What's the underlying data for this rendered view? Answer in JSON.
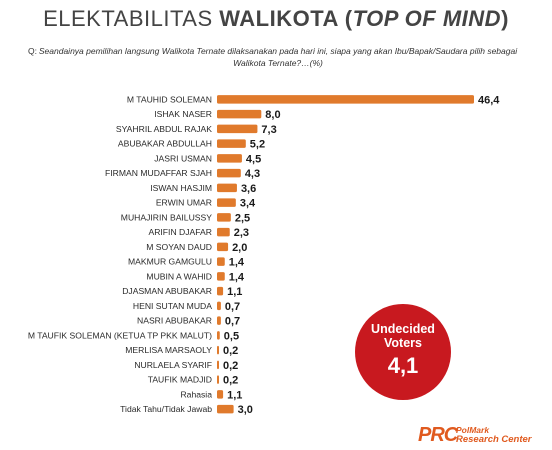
{
  "header": {
    "title_prefix": "ELEKTABILITAS ",
    "title_bold": "WALIKOTA",
    "title_open": " (",
    "title_italic": "TOP OF MIND",
    "title_close": ")",
    "question_label": "Q:",
    "question_text": "Seandainya pemilihan langsung Walikota Ternate dilaksanakan pada hari ini, siapa yang akan Ibu/Bapak/Saudara  pilih sebagai Walikota Ternate?…(%)"
  },
  "undecided": {
    "label_line1": "Undecided",
    "label_line2": "Voters",
    "value": "4,1"
  },
  "logo": {
    "mark": "PRC",
    "line1": "PolMark",
    "line2": "Research Center"
  },
  "colors": {
    "bar": "#e07a2c",
    "badge": "#c8191f",
    "logo": "#e05a1f"
  },
  "chart_data": {
    "type": "bar",
    "orientation": "horizontal",
    "categories": [
      "M TAUHID SOLEMAN",
      "ISHAK NASER",
      "SYAHRIL ABDUL RAJAK",
      "ABUBAKAR ABDULLAH",
      "JASRI USMAN",
      "FIRMAN MUDAFFAR SJAH",
      "ISWAN HASJIM",
      "ERWIN UMAR",
      "MUHAJIRIN BAILUSSY",
      "ARIFIN DJAFAR",
      "M SOYAN DAUD",
      "MAKMUR GAMGULU",
      "MUBIN A WAHID",
      "DJASMAN ABUBAKAR",
      "HENI SUTAN MUDA",
      "NASRI ABUBAKAR",
      "M TAUFIK SOLEMAN (KETUA TP PKK MALUT)",
      "MERLISA MARSAOLY",
      "NURLAELA SYARIF",
      "TAUFIK MADJID",
      "Rahasia",
      "Tidak Tahu/Tidak Jawab"
    ],
    "values": [
      46.4,
      8.0,
      7.3,
      5.2,
      4.5,
      4.3,
      3.6,
      3.4,
      2.5,
      2.3,
      2.0,
      1.4,
      1.4,
      1.1,
      0.7,
      0.7,
      0.5,
      0.2,
      0.2,
      0.2,
      1.1,
      3.0
    ],
    "value_labels": [
      "46,4",
      "8,0",
      "7,3",
      "5,2",
      "4,5",
      "4,3",
      "3,6",
      "3,4",
      "2,5",
      "2,3",
      "2,0",
      "1,4",
      "1,4",
      "1,1",
      "0,7",
      "0,7",
      "0,5",
      "0,2",
      "0,2",
      "0,2",
      "1,1",
      "3,0"
    ],
    "xlim": [
      0,
      46.4
    ],
    "grid": false,
    "legend": false
  }
}
